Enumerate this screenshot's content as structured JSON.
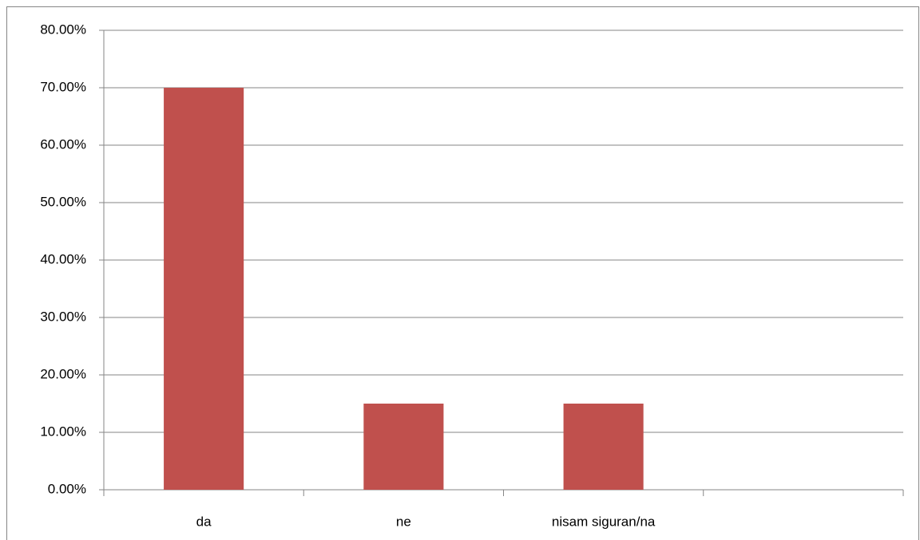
{
  "chart_data": {
    "type": "bar",
    "categories": [
      "da",
      "ne",
      "nisam siguran/na",
      null
    ],
    "values": [
      70,
      15,
      15,
      null
    ],
    "color": "#c0504d",
    "ylim": [
      0,
      80
    ],
    "yticks": [
      {
        "value": 0,
        "label": "0.00%"
      },
      {
        "value": 10,
        "label": "10.00%"
      },
      {
        "value": 20,
        "label": "20.00%"
      },
      {
        "value": 30,
        "label": "30.00%"
      },
      {
        "value": 40,
        "label": "40.00%"
      },
      {
        "value": 50,
        "label": "50.00%"
      },
      {
        "value": 60,
        "label": "60.00%"
      },
      {
        "value": 70,
        "label": "70.00%"
      },
      {
        "value": 80,
        "label": "80.00%"
      }
    ],
    "grid": true
  }
}
